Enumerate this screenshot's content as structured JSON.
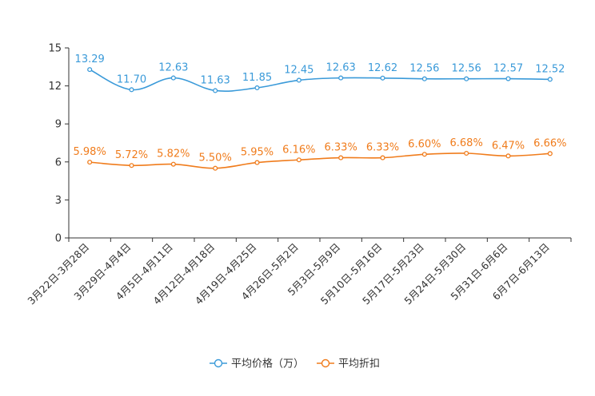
{
  "chart_data": {
    "type": "line",
    "categories": [
      "3月22日-3月28日",
      "3月29日-4月4日",
      "4月5日-4月11日",
      "4月12日-4月18日",
      "4月19日-4月25日",
      "4月26日-5月2日",
      "5月3日-5月9日",
      "5月10日-5月16日",
      "5月17日-5月23日",
      "5月24日-5月30日",
      "5月31日-6月6日",
      "6月7日-6月13日"
    ],
    "ylim": [
      0,
      15
    ],
    "yticks": [
      0,
      3,
      6,
      9,
      12,
      15
    ],
    "series": [
      {
        "name": "平均价格（万）",
        "color": "#3a9ad9",
        "values": [
          13.29,
          11.7,
          12.63,
          11.63,
          11.85,
          12.45,
          12.63,
          12.62,
          12.56,
          12.56,
          12.57,
          12.52
        ],
        "labels": [
          "13.29",
          "11.70",
          "12.63",
          "11.63",
          "11.85",
          "12.45",
          "12.63",
          "12.62",
          "12.56",
          "12.56",
          "12.57",
          "12.52"
        ]
      },
      {
        "name": "平均折扣",
        "color": "#f07c1c",
        "values": [
          5.98,
          5.72,
          5.82,
          5.5,
          5.95,
          6.16,
          6.33,
          6.33,
          6.6,
          6.68,
          6.47,
          6.66
        ],
        "labels": [
          "5.98%",
          "5.72%",
          "5.82%",
          "5.50%",
          "5.95%",
          "6.16%",
          "6.33%",
          "6.33%",
          "6.60%",
          "6.68%",
          "6.47%",
          "6.66%"
        ]
      }
    ],
    "legend_position": "bottom-center"
  }
}
